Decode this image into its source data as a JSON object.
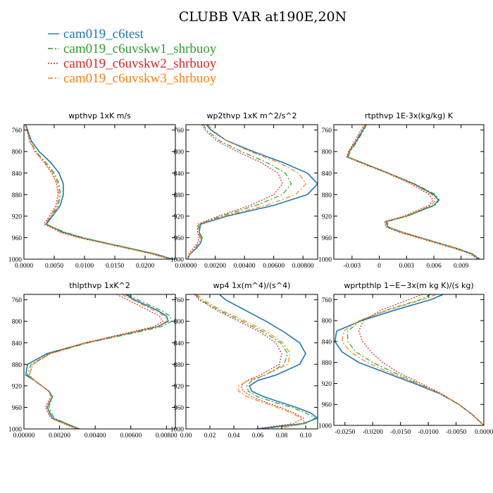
{
  "figure_title": "CLUBB VAR at190E,20N",
  "series": [
    {
      "name": "cam019_c6test",
      "color": "#1f77b4",
      "dash": "solid"
    },
    {
      "name": "cam019_c6uvskw1_shrbuoy",
      "color": "#2ca02c",
      "dash": "dashdot"
    },
    {
      "name": "cam019_c6uvskw2_shrbuoy",
      "color": "#d62728",
      "dash": "dotted"
    },
    {
      "name": "cam019_c6uvskw3_shrbuoy",
      "color": "#ff7f0e",
      "dash": "dashdot"
    }
  ],
  "chart_data": [
    {
      "type": "line",
      "title": "wpthvp   1xK m/s",
      "y_label": "",
      "ylim": [
        1000,
        750
      ],
      "yticks": [
        760,
        800,
        840,
        880,
        920,
        960,
        1000
      ],
      "xlim": [
        0,
        0.025
      ],
      "xticks": [
        0,
        0.005,
        0.01,
        0.015,
        0.02
      ],
      "xticklabels": [
        "0.0000",
        "0.0050",
        "0.0100",
        "0.0150",
        "0.0200"
      ],
      "y": [
        750,
        760,
        780,
        800,
        820,
        840,
        860,
        880,
        900,
        920,
        935,
        950,
        960,
        970,
        980,
        990,
        1000
      ],
      "series_values": [
        [
          0.0003,
          0.0006,
          0.0012,
          0.0025,
          0.0044,
          0.0058,
          0.0065,
          0.0065,
          0.006,
          0.0047,
          0.0037,
          0.0065,
          0.0095,
          0.0135,
          0.0175,
          0.0215,
          0.0245
        ],
        [
          0.0002,
          0.0005,
          0.001,
          0.002,
          0.0036,
          0.005,
          0.0058,
          0.006,
          0.0057,
          0.0045,
          0.0036,
          0.0068,
          0.0098,
          0.0137,
          0.0177,
          0.0217,
          0.0247
        ],
        [
          0.0002,
          0.0005,
          0.0009,
          0.0018,
          0.0033,
          0.0046,
          0.0054,
          0.0056,
          0.0053,
          0.0042,
          0.0033,
          0.006,
          0.009,
          0.013,
          0.017,
          0.021,
          0.024
        ],
        [
          0.0002,
          0.0005,
          0.001,
          0.0019,
          0.0034,
          0.0048,
          0.0056,
          0.0058,
          0.0055,
          0.0044,
          0.0035,
          0.0062,
          0.0092,
          0.0132,
          0.0172,
          0.0212,
          0.0243
        ]
      ]
    },
    {
      "type": "line",
      "title": "wp2thvp   1xK m^2/s^2",
      "ylim": [
        1000,
        750
      ],
      "yticks": [
        760,
        800,
        840,
        880,
        920,
        960,
        1000
      ],
      "xlim": [
        0,
        0.009
      ],
      "xticks": [
        0,
        0.002,
        0.004,
        0.006,
        0.008
      ],
      "xticklabels": [
        "0.00000",
        "0.00200",
        "0.00400",
        "0.00600",
        "0.00800"
      ],
      "y": [
        750,
        760,
        780,
        800,
        820,
        840,
        860,
        880,
        900,
        920,
        935,
        950,
        960,
        970,
        980,
        990,
        1000
      ],
      "series_values": [
        [
          0.0014,
          0.0017,
          0.0028,
          0.0046,
          0.0066,
          0.0083,
          0.009,
          0.0083,
          0.006,
          0.0028,
          0.001,
          0.0009,
          0.0011,
          0.001,
          0.0007,
          0.0003,
          0.0001
        ],
        [
          0.0012,
          0.0014,
          0.0023,
          0.0038,
          0.0055,
          0.0068,
          0.0072,
          0.0066,
          0.0048,
          0.0024,
          0.0009,
          0.0008,
          0.001,
          0.0009,
          0.0006,
          0.0003,
          0.0001
        ],
        [
          0.0011,
          0.0013,
          0.0021,
          0.0035,
          0.0051,
          0.0063,
          0.0066,
          0.006,
          0.0044,
          0.0022,
          0.0008,
          0.0008,
          0.0009,
          0.0008,
          0.0005,
          0.0002,
          0.0001
        ],
        [
          0.0015,
          0.0018,
          0.0028,
          0.0044,
          0.0063,
          0.0077,
          0.0082,
          0.0075,
          0.0055,
          0.0026,
          0.0009,
          0.0009,
          0.001,
          0.0009,
          0.0006,
          0.0003,
          0.0001
        ]
      ]
    },
    {
      "type": "line",
      "title": "rtpthvp   1E-3x(kg/kg) K",
      "ylim": [
        1000,
        750
      ],
      "yticks": [
        760,
        800,
        840,
        880,
        920,
        960,
        1000
      ],
      "xlim": [
        -0.005,
        0.0115
      ],
      "xticks": [
        -0.003,
        0,
        0.003,
        0.006,
        0.009
      ],
      "xticklabels": [
        "-0.003",
        "0",
        "0.003",
        "0.006",
        "0.009"
      ],
      "y": [
        750,
        760,
        780,
        800,
        810,
        820,
        840,
        860,
        880,
        890,
        900,
        920,
        930,
        940,
        950,
        960,
        970,
        980,
        990,
        1000
      ],
      "series_values": [
        [
          -0.0015,
          -0.0018,
          -0.0025,
          -0.0033,
          -0.0035,
          -0.002,
          0.001,
          0.0038,
          0.006,
          0.0065,
          0.006,
          0.003,
          0.0008,
          0.0009,
          0.0025,
          0.0045,
          0.0065,
          0.0085,
          0.0102,
          0.011
        ],
        [
          -0.0014,
          -0.0017,
          -0.0024,
          -0.0032,
          -0.0034,
          -0.002,
          0.001,
          0.0039,
          0.0062,
          0.0066,
          0.0061,
          0.0031,
          0.0009,
          0.001,
          0.0026,
          0.0046,
          0.0066,
          0.0086,
          0.0103,
          0.0111
        ],
        [
          -0.0016,
          -0.002,
          -0.0027,
          -0.0034,
          -0.0036,
          -0.0022,
          0.0008,
          0.0035,
          0.0055,
          0.0059,
          0.0055,
          0.0027,
          0.0006,
          0.0007,
          0.0022,
          0.0042,
          0.0062,
          0.0082,
          0.01,
          0.0108
        ],
        [
          -0.0015,
          -0.0019,
          -0.0026,
          -0.0033,
          -0.0035,
          -0.0021,
          0.0009,
          0.0037,
          0.0058,
          0.0062,
          0.0057,
          0.0029,
          0.0007,
          0.0008,
          0.0024,
          0.0044,
          0.0064,
          0.0084,
          0.0101,
          0.0109
        ]
      ]
    },
    {
      "type": "line",
      "title": "thlpthvp   1xK^2",
      "ylim": [
        1000,
        750
      ],
      "yticks": [
        760,
        800,
        840,
        880,
        920,
        960,
        1000
      ],
      "xlim": [
        0,
        0.0085
      ],
      "xticks": [
        0,
        0.002,
        0.004,
        0.006,
        0.008
      ],
      "xticklabels": [
        "0.00000",
        "0.00200",
        "0.00400",
        "0.00600",
        "0.00800"
      ],
      "y": [
        750,
        760,
        780,
        790,
        800,
        810,
        820,
        840,
        860,
        880,
        900,
        910,
        920,
        930,
        940,
        960,
        980,
        1000
      ],
      "series_values": [
        [
          0.0057,
          0.0062,
          0.0075,
          0.008,
          0.0081,
          0.0075,
          0.0062,
          0.0035,
          0.0013,
          0.0002,
          0.0001,
          0.0006,
          0.001,
          0.0014,
          0.0016,
          0.0013,
          0.0016,
          0.0031
        ],
        [
          0.0058,
          0.0064,
          0.0077,
          0.0082,
          0.0083,
          0.0077,
          0.0064,
          0.0036,
          0.0015,
          0.0004,
          0.0002,
          0.0006,
          0.001,
          0.0014,
          0.0016,
          0.0014,
          0.0017,
          0.0031
        ],
        [
          0.0052,
          0.0058,
          0.007,
          0.0076,
          0.0078,
          0.0073,
          0.006,
          0.0034,
          0.0014,
          0.0005,
          0.0003,
          0.0006,
          0.001,
          0.0014,
          0.0015,
          0.0012,
          0.0015,
          0.0029
        ],
        [
          0.0055,
          0.0061,
          0.0073,
          0.0079,
          0.008,
          0.0075,
          0.0062,
          0.0035,
          0.0015,
          0.0005,
          0.0003,
          0.0006,
          0.001,
          0.0014,
          0.0015,
          0.0013,
          0.0015,
          0.003
        ]
      ]
    },
    {
      "type": "line",
      "title": "wp4   1x(m^4)/(s^4)",
      "ylim": [
        1000,
        750
      ],
      "yticks": [
        760,
        800,
        840,
        880,
        920,
        960,
        1000
      ],
      "xlim": [
        0,
        0.11
      ],
      "xticks": [
        0,
        0.02,
        0.04,
        0.06,
        0.08,
        0.1
      ],
      "xticklabels": [
        "0.00",
        "0.02",
        "0.04",
        "0.06",
        "0.08",
        "0.10"
      ],
      "y": [
        750,
        760,
        780,
        800,
        820,
        840,
        860,
        880,
        900,
        910,
        920,
        930,
        940,
        950,
        960,
        970,
        980,
        990,
        1000
      ],
      "series_values": [
        [
          0.028,
          0.033,
          0.05,
          0.067,
          0.082,
          0.095,
          0.1,
          0.095,
          0.075,
          0.06,
          0.053,
          0.055,
          0.065,
          0.078,
          0.092,
          0.104,
          0.11,
          0.098,
          0.06
        ],
        [
          0.008,
          0.012,
          0.028,
          0.047,
          0.065,
          0.079,
          0.085,
          0.082,
          0.066,
          0.055,
          0.051,
          0.052,
          0.06,
          0.073,
          0.088,
          0.1,
          0.108,
          0.1,
          0.065
        ],
        [
          0.007,
          0.011,
          0.026,
          0.044,
          0.062,
          0.075,
          0.08,
          0.078,
          0.062,
          0.051,
          0.046,
          0.048,
          0.055,
          0.066,
          0.079,
          0.09,
          0.098,
          0.09,
          0.058
        ],
        [
          0.009,
          0.014,
          0.03,
          0.05,
          0.068,
          0.081,
          0.087,
          0.085,
          0.066,
          0.052,
          0.044,
          0.044,
          0.051,
          0.063,
          0.076,
          0.088,
          0.096,
          0.1,
          0.075
        ]
      ]
    },
    {
      "type": "line",
      "title": "wprtpthlp   1−E−3x(m kg K)/(s kg)",
      "ylim": [
        1000,
        750
      ],
      "yticks": [
        760,
        800,
        840,
        880,
        920,
        960,
        1000
      ],
      "xlim": [
        -0.027,
        0
      ],
      "xticks": [
        -0.025,
        -0.02,
        -0.015,
        -0.01,
        -0.005,
        0
      ],
      "xticklabels": [
        "-0.0250",
        "-0.0200",
        "-0.0150",
        "-0.0100",
        "-0.0050",
        "0.0000"
      ],
      "y": [
        750,
        760,
        780,
        800,
        820,
        840,
        860,
        880,
        900,
        920,
        940,
        960,
        980,
        1000
      ],
      "series_values": [
        [
          -0.0073,
          -0.0095,
          -0.016,
          -0.022,
          -0.0265,
          -0.0268,
          -0.0255,
          -0.0225,
          -0.0175,
          -0.0125,
          -0.0078,
          -0.0045,
          -0.002,
          0
        ],
        [
          -0.0095,
          -0.0115,
          -0.0175,
          -0.0222,
          -0.0245,
          -0.0245,
          -0.023,
          -0.02,
          -0.016,
          -0.0118,
          -0.0077,
          -0.0045,
          -0.002,
          0
        ],
        [
          -0.011,
          -0.0135,
          -0.0185,
          -0.0217,
          -0.0225,
          -0.0218,
          -0.0203,
          -0.0182,
          -0.0152,
          -0.0113,
          -0.0075,
          -0.0045,
          -0.002,
          0
        ],
        [
          -0.0085,
          -0.011,
          -0.0172,
          -0.0225,
          -0.0252,
          -0.0255,
          -0.024,
          -0.021,
          -0.0168,
          -0.012,
          -0.0078,
          -0.0045,
          -0.002,
          0
        ]
      ]
    }
  ]
}
